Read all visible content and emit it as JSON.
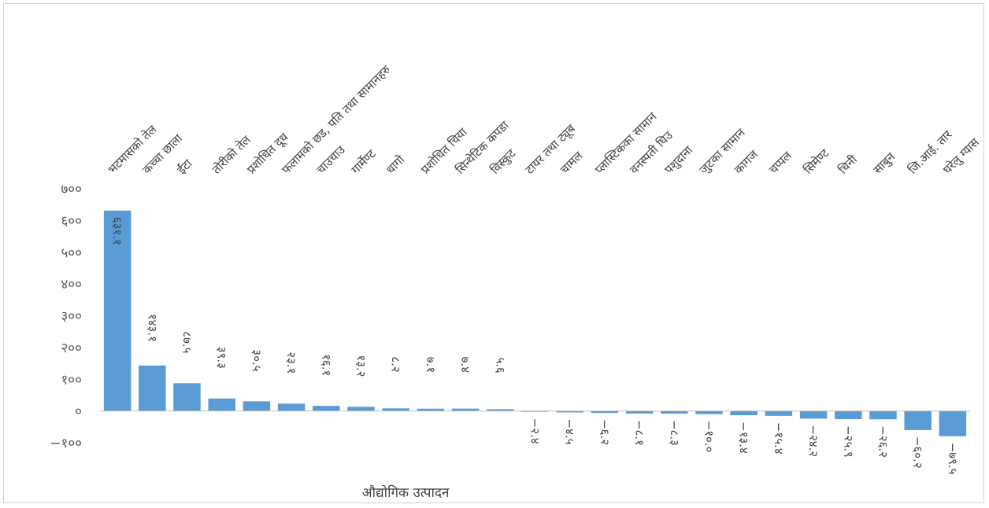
{
  "chart_data": {
    "type": "bar",
    "title": "",
    "xlabel": "औद्योगिक उत्पादन",
    "ylabel": "",
    "ylim": [
      -100,
      700
    ],
    "yticks": [
      -100,
      0,
      100,
      200,
      300,
      400,
      500,
      600,
      700
    ],
    "ytick_labels": [
      "−१००",
      "०",
      "१००",
      "२००",
      "३००",
      "४००",
      "५००",
      "६००",
      "७००"
    ],
    "grid": false,
    "legend": "none",
    "bar_color": "#5B9BD5",
    "categories": [
      "भटमासको तेल",
      "कच्चा छाला",
      "ईंटा",
      "तोरीको तेल",
      "प्रशोधित दूध",
      "फलामको छड, पति तथा सामानहरु",
      "चाउचाउ",
      "गार्मेण्ट",
      "धागो",
      "प्रशोधित चिया",
      "सिन्थेटिक कपडा",
      "विस्कुट",
      "टायर तथा ट्यूब",
      "चामल",
      "प्लास्टिकका सामान",
      "वनस्पती घिउ",
      "पशुदाना",
      "जुटका सामान",
      "कागज",
      "चप्पल",
      "सिमेण्ट",
      "चिनी",
      "साबुन",
      "जि.आई. तार",
      "घरेलु ग्यास"
    ],
    "values": [
      631.1,
      143.1,
      87.5,
      39.3,
      30.5,
      23.1,
      16.1,
      13.2,
      8.2,
      7.1,
      7.4,
      5.6,
      -2.4,
      -4.5,
      -6.2,
      -8.1,
      -8.3,
      -10.0,
      -13.4,
      -15.4,
      -24.2,
      -25.9,
      -26.2,
      -60.2,
      -79.5
    ],
    "data_labels": [
      "६३१.१",
      "१४३.१",
      "८७.५",
      "३९.३",
      "३०.५",
      "२३.१",
      "१६.१",
      "१३.२",
      "८.२",
      "७.१",
      "७.४",
      "५.६",
      "−२.४",
      "−४.५",
      "−६.२",
      "−८.१",
      "−८.३",
      "−१०.०",
      "−१३.४",
      "−१५.४",
      "−२४.२",
      "−२५.९",
      "−२६.२",
      "−६०.२",
      "−७९.५"
    ]
  }
}
